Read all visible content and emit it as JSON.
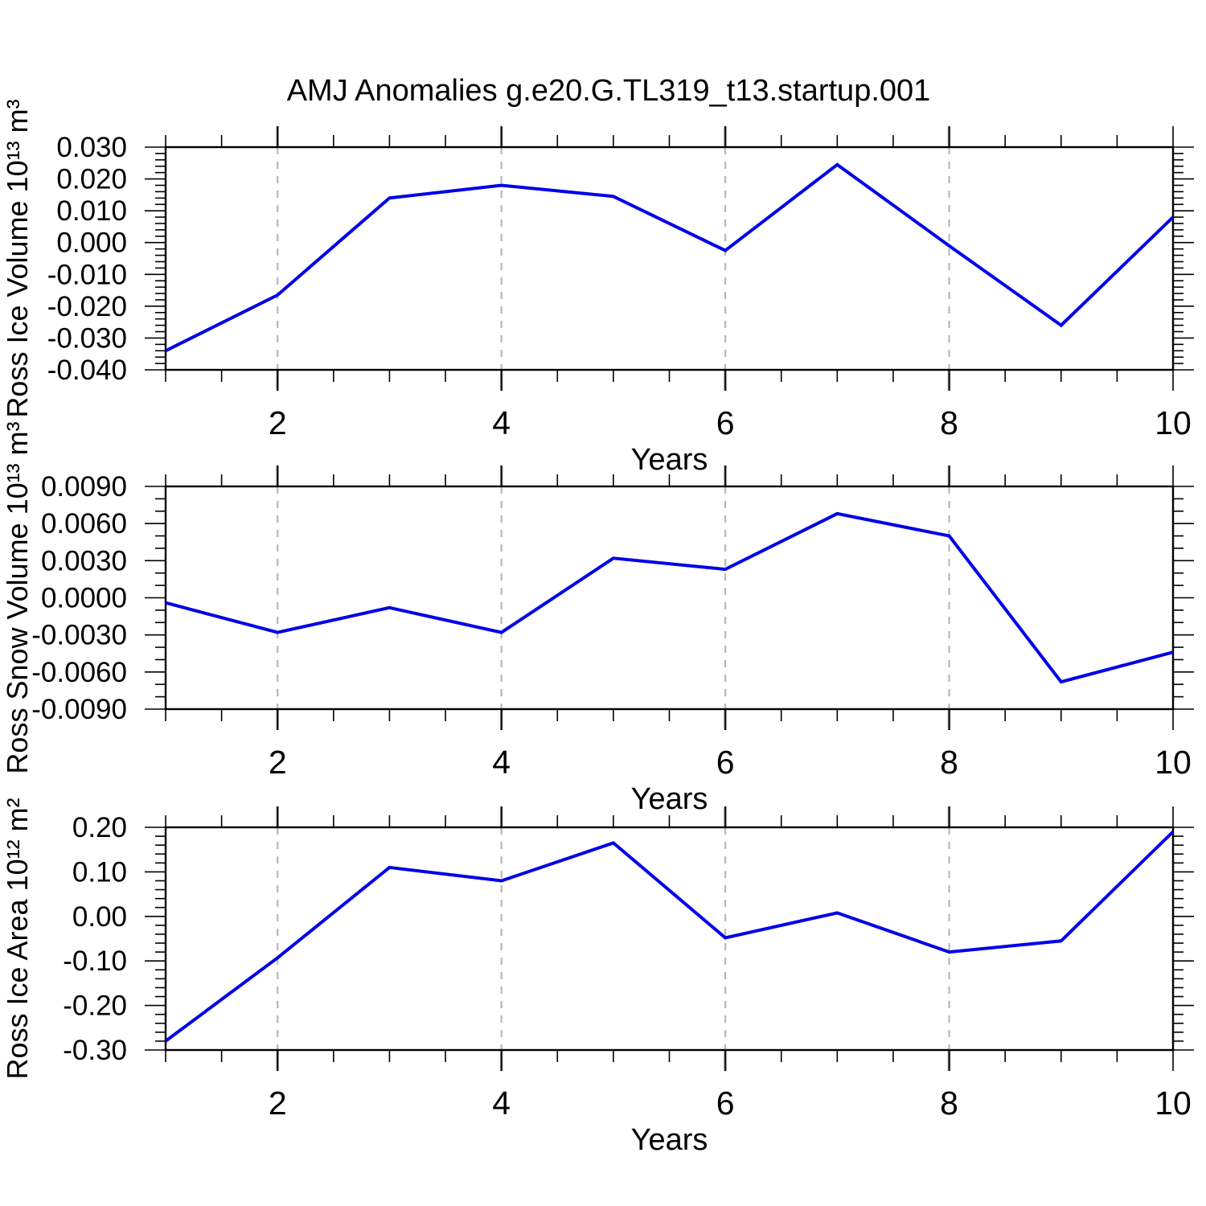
{
  "title": "AMJ Anomalies g.e20.G.TL319_t13.startup.001",
  "colors": {
    "line": "#0000e8",
    "grid": "#b8b8b8",
    "grid_stub": "#8c8c8c",
    "axis": "#000000",
    "text": "#000000"
  },
  "chart_data": [
    {
      "type": "line",
      "ylabel": "Ross Ice Volume 10¹³ m³",
      "xlabel": "Years",
      "x": [
        1,
        2,
        3,
        4,
        5,
        6,
        7,
        8,
        9,
        10
      ],
      "values": [
        -0.034,
        -0.0165,
        0.014,
        0.018,
        0.0145,
        -0.0025,
        0.0245,
        -0.001,
        -0.026,
        0.008
      ],
      "xlim": [
        1,
        10
      ],
      "ylim": [
        -0.04,
        0.03
      ],
      "yticks": [
        0.03,
        0.02,
        0.01,
        0,
        -0.01,
        -0.02,
        -0.03,
        -0.04
      ],
      "ytick_labels": [
        "0.030",
        "0.020",
        "0.010",
        "0.000",
        "-0.010",
        "-0.020",
        "-0.030",
        "-0.040"
      ],
      "ytick_minor_step": 0.002,
      "xticks": [
        2,
        4,
        6,
        8,
        10
      ],
      "xtick_labels": [
        "2",
        "4",
        "6",
        "8",
        "10"
      ],
      "xtick_minor_step": 0.5,
      "grid_x": [
        2,
        4,
        6,
        8
      ],
      "grid_style": "vertical-dashed",
      "legend": "none"
    },
    {
      "type": "line",
      "ylabel": "Ross Snow Volume 10¹³ m³",
      "xlabel": "Years",
      "x": [
        1,
        2,
        3,
        4,
        5,
        6,
        7,
        8,
        9,
        10
      ],
      "values": [
        -0.0004,
        -0.0028,
        -0.0008,
        -0.0028,
        0.0032,
        0.0023,
        0.0068,
        0.005,
        -0.0068,
        -0.0044
      ],
      "xlim": [
        1,
        10
      ],
      "ylim": [
        -0.009,
        0.009
      ],
      "yticks": [
        0.009,
        0.006,
        0.003,
        0,
        -0.003,
        -0.006,
        -0.009
      ],
      "ytick_labels": [
        "0.0090",
        "0.0060",
        "0.0030",
        "0.0000",
        "-0.0030",
        "-0.0060",
        "-0.0090"
      ],
      "ytick_minor_step": 0.001,
      "xticks": [
        2,
        4,
        6,
        8,
        10
      ],
      "xtick_labels": [
        "2",
        "4",
        "6",
        "8",
        "10"
      ],
      "xtick_minor_step": 0.5,
      "grid_x": [
        2,
        4,
        6,
        8
      ],
      "grid_style": "vertical-dashed",
      "legend": "none"
    },
    {
      "type": "line",
      "ylabel": "Ross Ice Area 10¹² m²",
      "xlabel": "Years",
      "x": [
        1,
        2,
        3,
        4,
        5,
        6,
        7,
        8,
        9,
        10
      ],
      "values": [
        -0.28,
        -0.093,
        0.11,
        0.08,
        0.165,
        -0.048,
        0.008,
        -0.08,
        -0.055,
        0.19
      ],
      "xlim": [
        1,
        10
      ],
      "ylim": [
        -0.3,
        0.2
      ],
      "yticks": [
        0.2,
        0.1,
        0,
        -0.1,
        -0.2,
        -0.3
      ],
      "ytick_labels": [
        "0.20",
        "0.10",
        "0.00",
        "-0.10",
        "-0.20",
        "-0.30"
      ],
      "ytick_minor_step": 0.02,
      "xticks": [
        2,
        4,
        6,
        8,
        10
      ],
      "xtick_labels": [
        "2",
        "4",
        "6",
        "8",
        "10"
      ],
      "xtick_minor_step": 0.5,
      "grid_x": [
        2,
        4,
        6,
        8
      ],
      "grid_style": "vertical-dashed",
      "legend": "none"
    }
  ]
}
